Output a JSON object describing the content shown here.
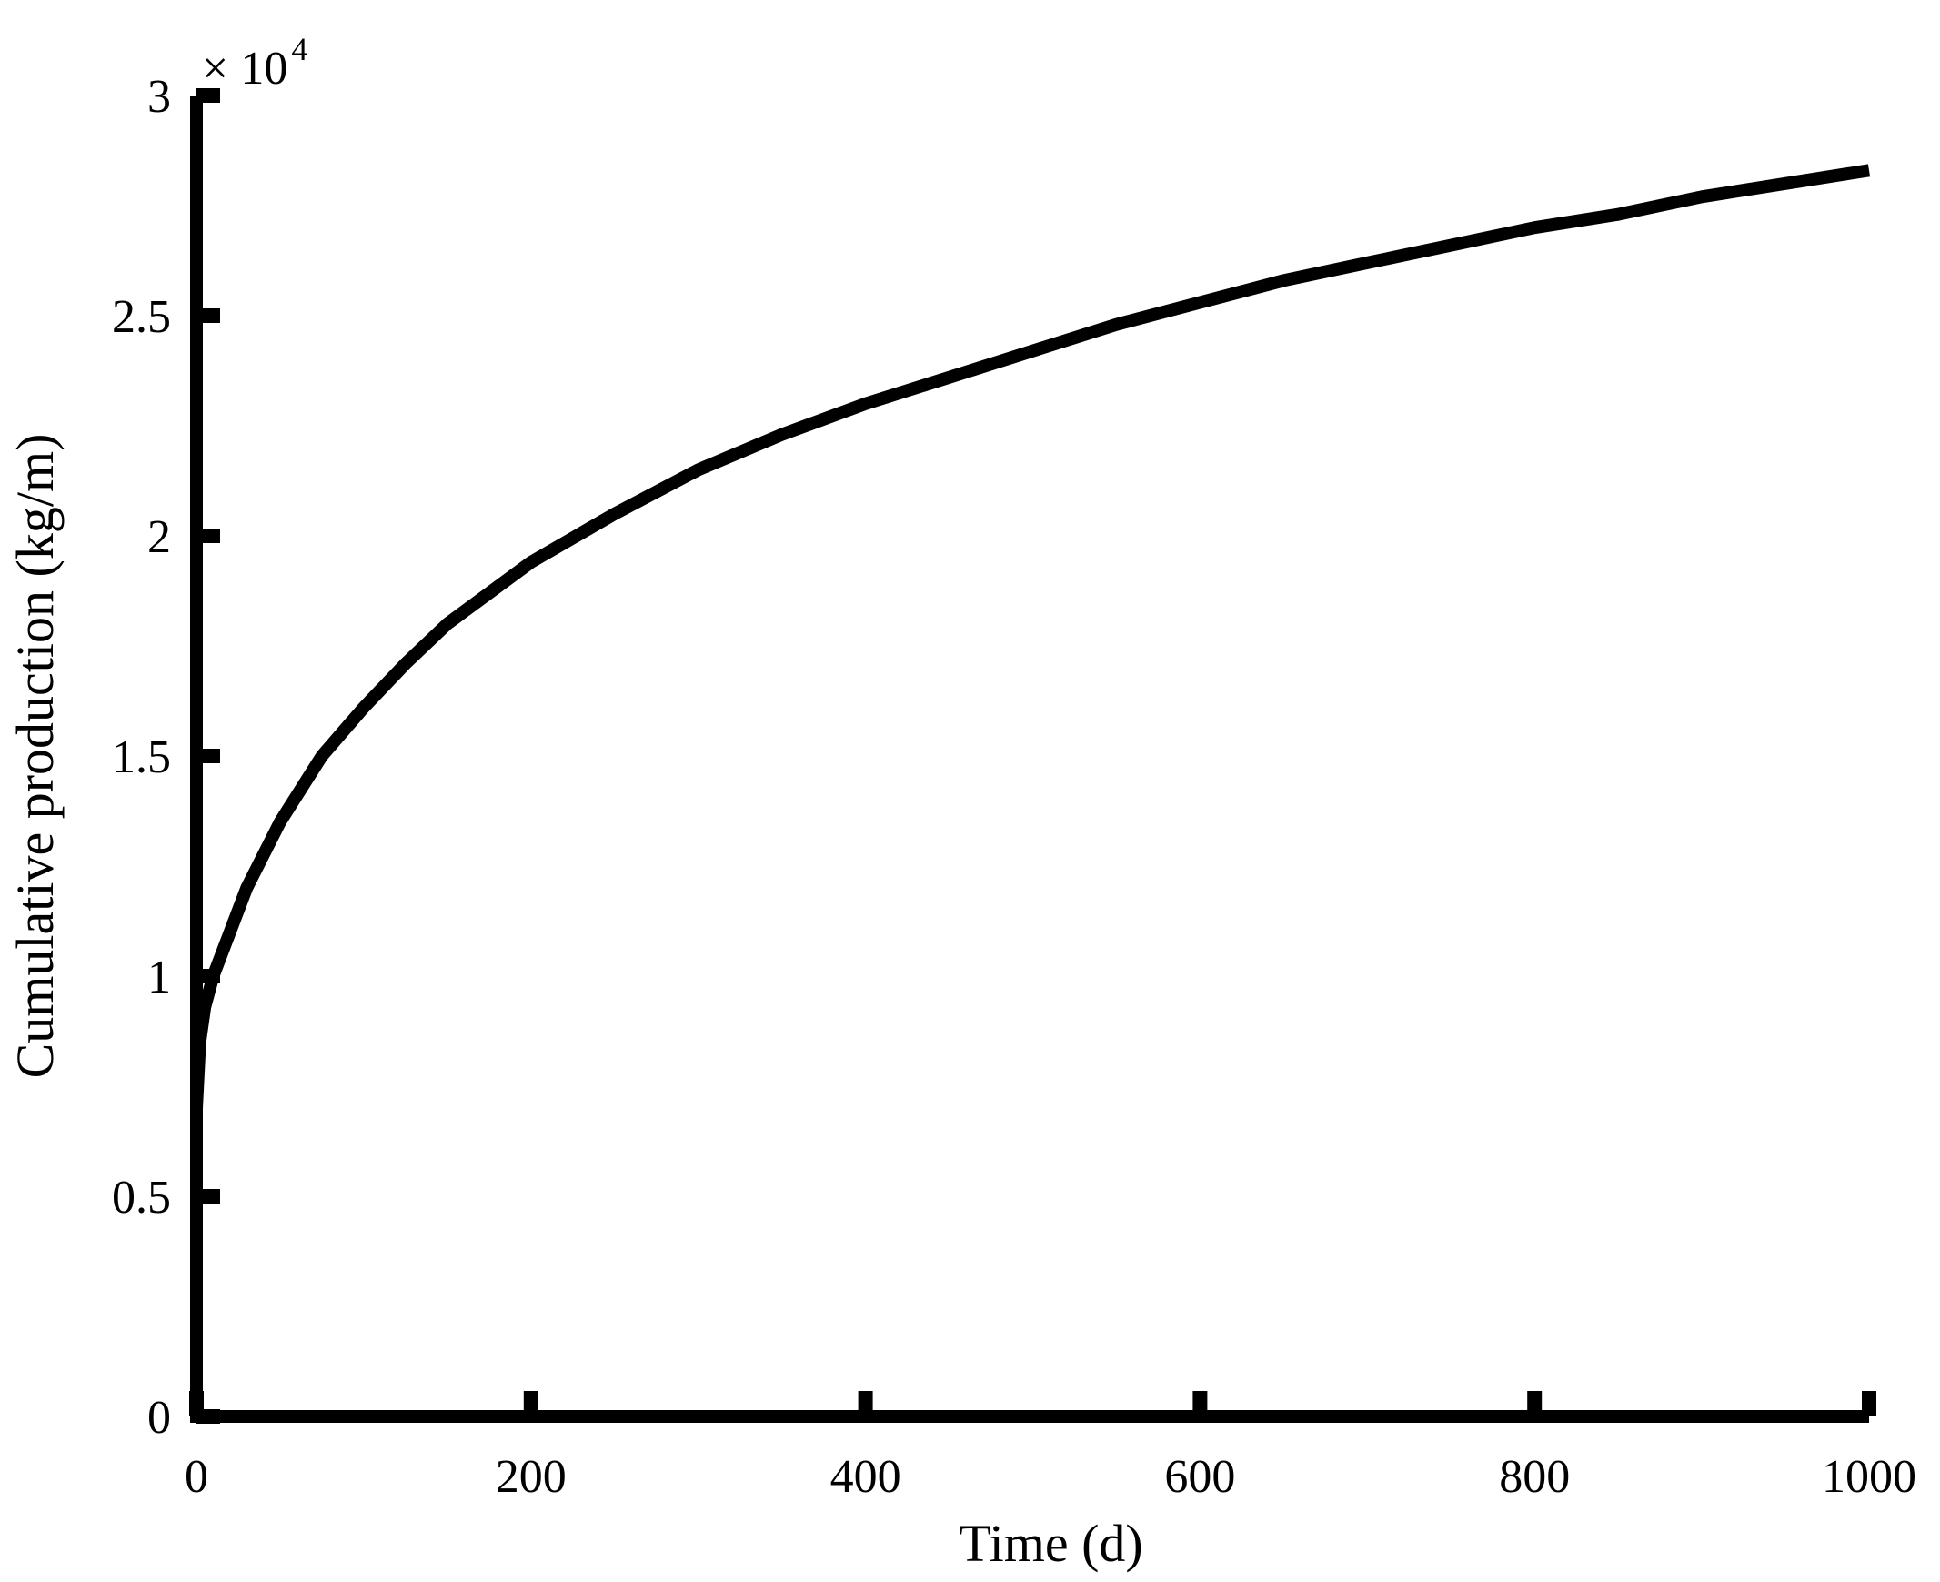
{
  "chart_data": {
    "type": "line",
    "title": "",
    "xlabel": "Time (d)",
    "ylabel": "Cumulative production (kg/m)",
    "y_multiplier": {
      "base": "× 10",
      "exponent": "4"
    },
    "xlim": [
      0,
      1000
    ],
    "ylim": [
      0,
      3
    ],
    "x_ticks": [
      {
        "value": 0,
        "label": "0"
      },
      {
        "value": 200,
        "label": "200"
      },
      {
        "value": 400,
        "label": "400"
      },
      {
        "value": 600,
        "label": "600"
      },
      {
        "value": 800,
        "label": "800"
      },
      {
        "value": 1000,
        "label": "1000"
      }
    ],
    "y_ticks": [
      {
        "value": 0,
        "label": "0"
      },
      {
        "value": 0.5,
        "label": "0.5"
      },
      {
        "value": 1,
        "label": "1"
      },
      {
        "value": 1.5,
        "label": "1.5"
      },
      {
        "value": 2,
        "label": "2"
      },
      {
        "value": 2.5,
        "label": "2.5"
      },
      {
        "value": 3,
        "label": "3"
      }
    ],
    "grid": false,
    "line_color": "#000000",
    "series": [
      {
        "x": [
          0,
          2,
          5,
          10,
          20,
          30,
          50,
          75,
          100,
          125,
          150,
          175,
          200,
          250,
          300,
          350,
          400,
          450,
          500,
          550,
          600,
          650,
          700,
          750,
          800,
          850,
          900,
          950,
          1000
        ],
        "y": [
          0.7,
          0.85,
          0.93,
          1.0,
          1.1,
          1.2,
          1.35,
          1.5,
          1.61,
          1.71,
          1.8,
          1.87,
          1.94,
          2.05,
          2.15,
          2.23,
          2.3,
          2.36,
          2.42,
          2.48,
          2.53,
          2.58,
          2.62,
          2.66,
          2.7,
          2.73,
          2.77,
          2.8,
          2.83
        ]
      }
    ]
  }
}
